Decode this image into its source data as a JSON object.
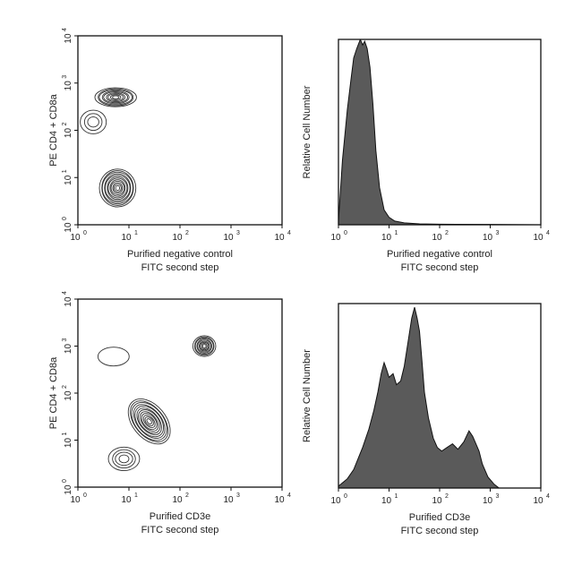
{
  "chart_data": [
    {
      "type": "contour",
      "panel": "top-left",
      "xlabel": "Purified negative control",
      "xlabel2": "FITC second step",
      "ylabel": "PE CD4 + CD8a",
      "xscale": "log",
      "yscale": "log",
      "xlim": [
        1,
        10000
      ],
      "ylim": [
        1,
        10000
      ],
      "xticks": [
        "10",
        "10",
        "10",
        "10",
        "10"
      ],
      "xtick_exp": [
        "0",
        "1",
        "2",
        "3",
        "4"
      ],
      "yticks": [
        "10",
        "10",
        "10",
        "10",
        "10"
      ],
      "ytick_exp": [
        "0",
        "1",
        "2",
        "3",
        "4"
      ],
      "populations": [
        {
          "x": 5.5,
          "y": 500,
          "sx": 0.4,
          "sy": 0.2,
          "levels": 9
        },
        {
          "x": 6.0,
          "y": 6.0,
          "sx": 0.35,
          "sy": 0.4,
          "levels": 12
        },
        {
          "x": 2.0,
          "y": 150,
          "sx": 0.25,
          "sy": 0.25,
          "levels": 3
        }
      ]
    },
    {
      "type": "histogram",
      "panel": "top-right",
      "xlabel": "Purified negative control",
      "xlabel2": "FITC second step",
      "ylabel": "Relative Cell Number",
      "xscale": "log",
      "xlim": [
        1,
        10000
      ],
      "ylim": [
        0,
        1
      ],
      "xticks": [
        "10",
        "10",
        "10",
        "10",
        "10"
      ],
      "xtick_exp": [
        "0",
        "1",
        "2",
        "3",
        "4"
      ],
      "series": [
        {
          "x": [
            1.0,
            1.2,
            1.5,
            1.8,
            2.0,
            2.3,
            2.7,
            3.0,
            3.3,
            3.7,
            4.2,
            4.8,
            5.5,
            6.5,
            8.0,
            10,
            13,
            20,
            40,
            100,
            1000,
            10000
          ],
          "y": [
            0.02,
            0.35,
            0.62,
            0.8,
            0.9,
            0.95,
            1.0,
            0.97,
            0.99,
            0.95,
            0.85,
            0.65,
            0.4,
            0.2,
            0.08,
            0.04,
            0.02,
            0.01,
            0.005,
            0.003,
            0.002,
            0.0
          ]
        }
      ]
    },
    {
      "type": "contour",
      "panel": "bottom-left",
      "xlabel": "Purified CD3e",
      "xlabel2": "FITC second step",
      "ylabel": "PE CD4 + CD8a",
      "xscale": "log",
      "yscale": "log",
      "xlim": [
        1,
        10000
      ],
      "ylim": [
        1,
        10000
      ],
      "xticks": [
        "10",
        "10",
        "10",
        "10",
        "10"
      ],
      "xtick_exp": [
        "0",
        "1",
        "2",
        "3",
        "4"
      ],
      "yticks": [
        "10",
        "10",
        "10",
        "10",
        "10"
      ],
      "ytick_exp": [
        "0",
        "1",
        "2",
        "3",
        "4"
      ],
      "populations": [
        {
          "x": 300,
          "y": 1000,
          "sx": 0.22,
          "sy": 0.22,
          "levels": 9
        },
        {
          "x": 25,
          "y": 25,
          "sx": 0.32,
          "sy": 0.55,
          "rot": -40,
          "levels": 12
        },
        {
          "x": 8,
          "y": 4,
          "sx": 0.3,
          "sy": 0.25,
          "levels": 4
        },
        {
          "x": 5,
          "y": 600,
          "sx": 0.3,
          "sy": 0.2,
          "levels": 1
        }
      ]
    },
    {
      "type": "histogram",
      "panel": "bottom-right",
      "xlabel": "Purified CD3e",
      "xlabel2": "FITC second step",
      "ylabel": "Relative Cell Number",
      "xscale": "log",
      "xlim": [
        1,
        10000
      ],
      "ylim": [
        0,
        1
      ],
      "xticks": [
        "10",
        "10",
        "10",
        "10",
        "10"
      ],
      "xtick_exp": [
        "0",
        "1",
        "2",
        "3",
        "4"
      ],
      "series": [
        {
          "x": [
            1.0,
            1.5,
            2.0,
            3.0,
            4.0,
            5.0,
            6.0,
            7.0,
            8.0,
            9.0,
            10,
            12,
            14,
            17,
            20,
            24,
            28,
            32,
            36,
            40,
            45,
            50,
            60,
            75,
            90,
            110,
            140,
            180,
            230,
            300,
            380,
            450,
            520,
            600,
            700,
            900,
            1200,
            1500,
            10000
          ],
          "y": [
            0.01,
            0.05,
            0.1,
            0.22,
            0.32,
            0.42,
            0.52,
            0.62,
            0.68,
            0.64,
            0.6,
            0.62,
            0.56,
            0.58,
            0.66,
            0.8,
            0.92,
            0.98,
            0.92,
            0.85,
            0.68,
            0.52,
            0.38,
            0.27,
            0.22,
            0.2,
            0.22,
            0.24,
            0.21,
            0.25,
            0.31,
            0.28,
            0.24,
            0.2,
            0.13,
            0.06,
            0.02,
            0.0,
            0.0
          ]
        }
      ]
    }
  ]
}
